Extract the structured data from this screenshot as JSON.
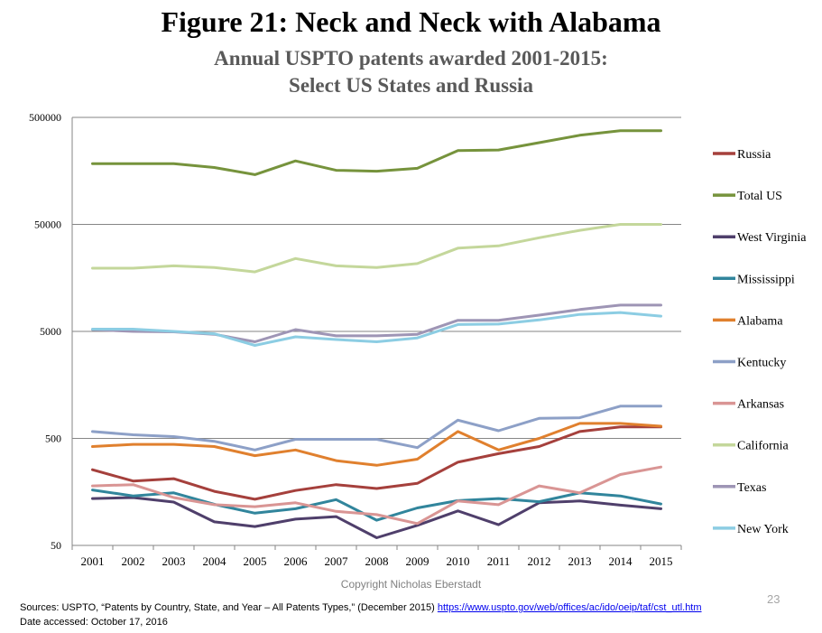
{
  "title": "Figure 21: Neck and Neck with Alabama",
  "subtitle_line1": "Annual USPTO patents awarded 2001-2015:",
  "subtitle_line2": "Select US States and Russia",
  "copyright": "Copyright Nicholas Eberstadt",
  "page_number": "23",
  "sources_prefix": "Sources: USPTO, “Patents by Country, State, and Year – All Patents Types,” (December 2015)",
  "sources_url": "https://www.uspto.gov/web/offices/ac/ido/oeip/taf/cst_utl.htm",
  "date_accessed": "Date accessed: October 17, 2016",
  "chart_data": {
    "type": "line",
    "yscale": "log",
    "ylim": [
      50,
      500000
    ],
    "yticks": [
      50,
      500,
      5000,
      50000,
      500000
    ],
    "grid": true,
    "legend_position": "right",
    "categories": [
      "2001",
      "2002",
      "2003",
      "2004",
      "2005",
      "2006",
      "2007",
      "2008",
      "2009",
      "2010",
      "2011",
      "2012",
      "2013",
      "2014",
      "2015"
    ],
    "series": [
      {
        "name": "Russia",
        "color": "#a5403c",
        "values": [
          255,
          200,
          210,
          160,
          135,
          163,
          185,
          170,
          190,
          300,
          360,
          420,
          580,
          640,
          640
        ]
      },
      {
        "name": "Total US",
        "color": "#76933c",
        "values": [
          185000,
          185000,
          185000,
          170000,
          146000,
          196000,
          160000,
          157000,
          167000,
          245000,
          248000,
          290000,
          340000,
          375000,
          375000
        ]
      },
      {
        "name": "West Virginia",
        "color": "#4f3f6b",
        "values": [
          137,
          140,
          127,
          83,
          75,
          88,
          93,
          59,
          77,
          105,
          78,
          125,
          130,
          119,
          110
        ]
      },
      {
        "name": "Mississippi",
        "color": "#31859c",
        "values": [
          165,
          145,
          155,
          121,
          100,
          110,
          134,
          86,
          112,
          131,
          137,
          128,
          155,
          145,
          122
        ]
      },
      {
        "name": "Alabama",
        "color": "#e0802e",
        "values": [
          420,
          440,
          440,
          420,
          345,
          390,
          310,
          280,
          320,
          580,
          390,
          500,
          690,
          690,
          650
        ]
      },
      {
        "name": "Kentucky",
        "color": "#8da0c7",
        "values": [
          580,
          540,
          520,
          470,
          390,
          490,
          490,
          490,
          410,
          740,
          590,
          770,
          780,
          1000,
          1000
        ]
      },
      {
        "name": "Arkansas",
        "color": "#d99594",
        "values": [
          180,
          185,
          140,
          120,
          115,
          125,
          104,
          97,
          80,
          130,
          120,
          180,
          155,
          230,
          270
        ]
      },
      {
        "name": "California",
        "color": "#c4d79b",
        "values": [
          19500,
          19500,
          20500,
          19800,
          18000,
          24000,
          20500,
          19800,
          21500,
          30000,
          31500,
          37500,
          44000,
          50000,
          50000
        ]
      },
      {
        "name": "Texas",
        "color": "#9e95b5",
        "values": [
          5200,
          5000,
          4950,
          4700,
          4000,
          5200,
          4550,
          4550,
          4700,
          6350,
          6350,
          7100,
          8000,
          8800,
          8800
        ]
      },
      {
        "name": "New York",
        "color": "#8ccde3",
        "values": [
          5250,
          5250,
          5000,
          4750,
          3700,
          4450,
          4200,
          4000,
          4350,
          5800,
          5850,
          6400,
          7200,
          7500,
          6950
        ]
      }
    ]
  }
}
